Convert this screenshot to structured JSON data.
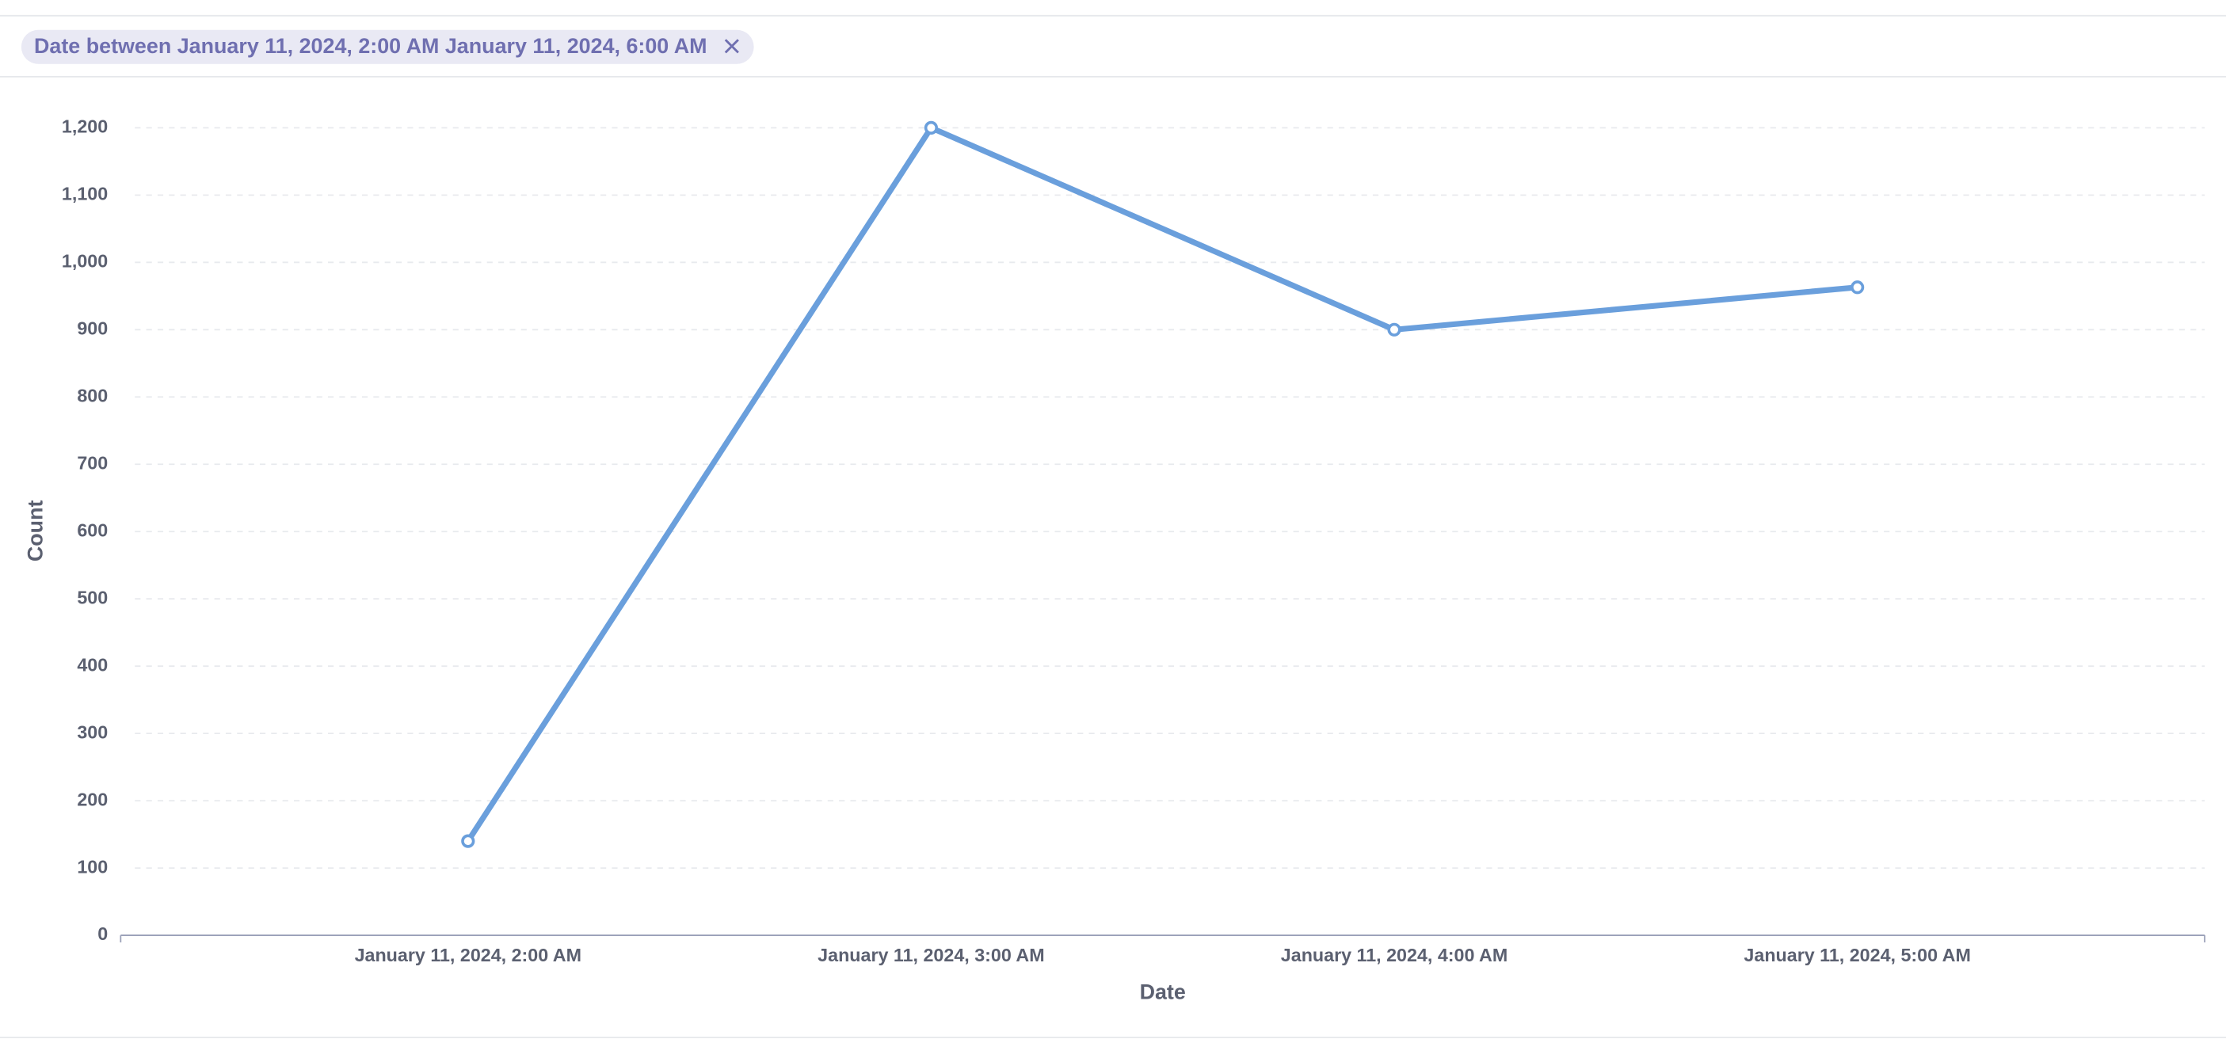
{
  "filter": {
    "label": "Date between January 11, 2024, 2:00 AM January 11, 2024, 6:00 AM"
  },
  "chart_data": {
    "type": "line",
    "xlabel": "Date",
    "ylabel": "Count",
    "categories": [
      "January 11, 2024, 2:00 AM",
      "January 11, 2024, 3:00 AM",
      "January 11, 2024, 4:00 AM",
      "January 11, 2024, 5:00 AM"
    ],
    "values": [
      140,
      1200,
      900,
      963
    ],
    "color": "#6a9fdc",
    "ylim": [
      0,
      1200
    ],
    "yticks": [
      0,
      100,
      200,
      300,
      400,
      500,
      600,
      700,
      800,
      900,
      {
        "value": 1000,
        "label": "1,000"
      },
      {
        "value": 1100,
        "label": "1,100"
      },
      {
        "value": 1200,
        "label": "1,200"
      }
    ],
    "grid": true
  }
}
